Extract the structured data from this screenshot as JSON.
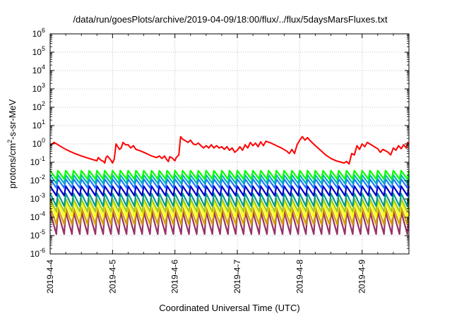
{
  "chart_data": {
    "type": "line",
    "title": "/data/run/goesPlots/archive/2019-04-09/18:00/flux/../flux/5daysMarsFluxes.txt",
    "xlabel": "Coordinated Universal Time (UTC)",
    "ylabel_parts": {
      "base": "protons/cm",
      "sup": "2",
      "rest": "-s-sr-MeV"
    },
    "y_scale": "log",
    "ylim": [
      1e-06,
      1000000.0
    ],
    "xlim": [
      "2019-04-04T00:00",
      "2019-04-09T18:00"
    ],
    "grid": true,
    "y_ticks": [
      {
        "value": 1e-06,
        "base": "10",
        "exp": "-6"
      },
      {
        "value": 1e-05,
        "base": "10",
        "exp": "-5"
      },
      {
        "value": 0.0001,
        "base": "10",
        "exp": "-4"
      },
      {
        "value": 0.001,
        "base": "10",
        "exp": "-3"
      },
      {
        "value": 0.01,
        "base": "10",
        "exp": "-2"
      },
      {
        "value": 0.1,
        "base": "10",
        "exp": "-1"
      },
      {
        "value": 1,
        "base": "10",
        "exp": "0"
      },
      {
        "value": 10,
        "base": "10",
        "exp": "1"
      },
      {
        "value": 100,
        "base": "10",
        "exp": "2"
      },
      {
        "value": 1000,
        "base": "10",
        "exp": "3"
      },
      {
        "value": 10000,
        "base": "10",
        "exp": "4"
      },
      {
        "value": 100000,
        "base": "10",
        "exp": "5"
      },
      {
        "value": 1000000,
        "base": "10",
        "exp": "6"
      }
    ],
    "x_ticks": [
      {
        "value": "2019-04-04",
        "label": "2019-4-4"
      },
      {
        "value": "2019-04-05",
        "label": "2019-4-5"
      },
      {
        "value": "2019-04-06",
        "label": "2019-4-6"
      },
      {
        "value": "2019-04-07",
        "label": "2019-4-7"
      },
      {
        "value": "2019-04-08",
        "label": "2019-4-8"
      },
      {
        "value": "2019-04-09",
        "label": "2019-4-9"
      }
    ],
    "series": [
      {
        "color": "#ff0000",
        "points": [
          [
            "2019-04-04T00:00",
            0.8
          ],
          [
            "2019-04-04T01:30",
            1.2
          ],
          [
            "2019-04-04T03:00",
            0.9
          ],
          [
            "2019-04-04T06:00",
            0.5
          ],
          [
            "2019-04-04T09:00",
            0.32
          ],
          [
            "2019-04-04T12:00",
            0.22
          ],
          [
            "2019-04-04T15:00",
            0.16
          ],
          [
            "2019-04-04T18:00",
            0.12
          ],
          [
            "2019-04-04T18:30",
            0.18
          ],
          [
            "2019-04-04T19:30",
            0.13
          ],
          [
            "2019-04-04T20:30",
            0.11
          ],
          [
            "2019-04-04T21:00",
            0.09
          ],
          [
            "2019-04-04T21:30",
            0.18
          ],
          [
            "2019-04-04T22:00",
            0.22
          ],
          [
            "2019-04-04T23:00",
            0.15
          ],
          [
            "2019-04-04T23:30",
            0.12
          ],
          [
            "2019-04-05T00:00",
            0.09
          ],
          [
            "2019-04-05T00:40",
            0.15
          ],
          [
            "2019-04-05T01:20",
            1.0
          ],
          [
            "2019-04-05T02:00",
            0.7
          ],
          [
            "2019-04-05T02:40",
            0.5
          ],
          [
            "2019-04-05T03:20",
            0.6
          ],
          [
            "2019-04-05T04:00",
            1.2
          ],
          [
            "2019-04-05T05:00",
            0.9
          ],
          [
            "2019-04-05T06:00",
            0.9
          ],
          [
            "2019-04-05T07:00",
            0.6
          ],
          [
            "2019-04-05T08:00",
            0.8
          ],
          [
            "2019-04-05T09:00",
            0.5
          ],
          [
            "2019-04-05T11:00",
            0.4
          ],
          [
            "2019-04-05T13:00",
            0.3
          ],
          [
            "2019-04-05T15:00",
            0.22
          ],
          [
            "2019-04-05T17:00",
            0.18
          ],
          [
            "2019-04-05T18:00",
            0.22
          ],
          [
            "2019-04-05T19:00",
            0.16
          ],
          [
            "2019-04-05T20:00",
            0.22
          ],
          [
            "2019-04-05T20:40",
            0.15
          ],
          [
            "2019-04-05T21:30",
            0.11
          ],
          [
            "2019-04-05T22:00",
            0.2
          ],
          [
            "2019-04-05T23:00",
            0.17
          ],
          [
            "2019-04-05T23:40",
            0.13
          ],
          [
            "2019-04-06T00:00",
            0.12
          ],
          [
            "2019-04-06T00:30",
            0.18
          ],
          [
            "2019-04-06T01:30",
            0.25
          ],
          [
            "2019-04-06T02:10",
            2.5
          ],
          [
            "2019-04-06T03:00",
            1.8
          ],
          [
            "2019-04-06T04:00",
            1.5
          ],
          [
            "2019-04-06T05:00",
            1.2
          ],
          [
            "2019-04-06T06:00",
            1.6
          ],
          [
            "2019-04-06T07:00",
            1.0
          ],
          [
            "2019-04-06T08:00",
            0.9
          ],
          [
            "2019-04-06T09:00",
            1.1
          ],
          [
            "2019-04-06T10:00",
            0.8
          ],
          [
            "2019-04-06T11:00",
            0.6
          ],
          [
            "2019-04-06T12:00",
            0.8
          ],
          [
            "2019-04-06T13:00",
            0.6
          ],
          [
            "2019-04-06T14:00",
            0.9
          ],
          [
            "2019-04-06T15:00",
            0.6
          ],
          [
            "2019-04-06T16:00",
            0.8
          ],
          [
            "2019-04-06T17:00",
            0.6
          ],
          [
            "2019-04-06T18:00",
            0.7
          ],
          [
            "2019-04-06T19:00",
            0.5
          ],
          [
            "2019-04-06T20:00",
            0.7
          ],
          [
            "2019-04-06T21:00",
            0.45
          ],
          [
            "2019-04-06T22:00",
            0.6
          ],
          [
            "2019-04-06T23:00",
            0.35
          ],
          [
            "2019-04-07T00:00",
            0.45
          ],
          [
            "2019-04-07T01:00",
            0.7
          ],
          [
            "2019-04-07T02:00",
            0.45
          ],
          [
            "2019-04-07T03:00",
            0.9
          ],
          [
            "2019-04-07T04:00",
            0.6
          ],
          [
            "2019-04-07T05:00",
            1.2
          ],
          [
            "2019-04-07T06:00",
            0.8
          ],
          [
            "2019-04-07T07:00",
            1.1
          ],
          [
            "2019-04-07T08:00",
            0.7
          ],
          [
            "2019-04-07T09:00",
            1.3
          ],
          [
            "2019-04-07T10:00",
            0.8
          ],
          [
            "2019-04-07T11:00",
            1.4
          ],
          [
            "2019-04-07T13:00",
            1.1
          ],
          [
            "2019-04-07T15:00",
            0.8
          ],
          [
            "2019-04-07T17:00",
            0.6
          ],
          [
            "2019-04-07T19:00",
            0.4
          ],
          [
            "2019-04-07T20:00",
            0.3
          ],
          [
            "2019-04-07T21:00",
            0.5
          ],
          [
            "2019-04-07T22:00",
            0.3
          ],
          [
            "2019-04-07T23:00",
            0.9
          ],
          [
            "2019-04-08T00:00",
            1.6
          ],
          [
            "2019-04-08T01:00",
            2.5
          ],
          [
            "2019-04-08T02:00",
            1.6
          ],
          [
            "2019-04-08T03:00",
            2.2
          ],
          [
            "2019-04-08T04:00",
            1.5
          ],
          [
            "2019-04-08T06:00",
            0.8
          ],
          [
            "2019-04-08T08:00",
            0.45
          ],
          [
            "2019-04-08T10:00",
            0.25
          ],
          [
            "2019-04-08T12:00",
            0.16
          ],
          [
            "2019-04-08T14:00",
            0.12
          ],
          [
            "2019-04-08T16:00",
            0.1
          ],
          [
            "2019-04-08T17:00",
            0.09
          ],
          [
            "2019-04-08T18:00",
            0.11
          ],
          [
            "2019-04-08T19:00",
            0.08
          ],
          [
            "2019-04-08T20:00",
            0.3
          ],
          [
            "2019-04-08T21:00",
            0.25
          ],
          [
            "2019-04-08T22:00",
            0.8
          ],
          [
            "2019-04-08T23:00",
            0.5
          ],
          [
            "2019-04-09T00:00",
            1.0
          ],
          [
            "2019-04-09T01:00",
            0.7
          ],
          [
            "2019-04-09T02:00",
            1.2
          ],
          [
            "2019-04-09T04:00",
            0.8
          ],
          [
            "2019-04-09T06:00",
            0.55
          ],
          [
            "2019-04-09T07:00",
            0.35
          ],
          [
            "2019-04-09T08:00",
            0.5
          ],
          [
            "2019-04-09T10:00",
            0.35
          ],
          [
            "2019-04-09T11:00",
            0.25
          ],
          [
            "2019-04-09T12:00",
            0.6
          ],
          [
            "2019-04-09T13:00",
            0.45
          ],
          [
            "2019-04-09T14:00",
            0.8
          ],
          [
            "2019-04-09T15:00",
            0.55
          ],
          [
            "2019-04-09T16:00",
            0.9
          ],
          [
            "2019-04-09T17:00",
            0.6
          ],
          [
            "2019-04-09T17:30",
            1.2
          ],
          [
            "2019-04-09T18:00",
            1.0
          ]
        ]
      },
      {
        "color": "#00ff00",
        "pattern": "sawtooth",
        "period_hours": 3,
        "peak": 0.035,
        "trough": 0.012
      },
      {
        "color": "#00b4b4",
        "pattern": "sawtooth",
        "period_hours": 3,
        "peak": 0.02,
        "trough": 0.007
      },
      {
        "color": "#1e78ff",
        "pattern": "sawtooth",
        "period_hours": 3,
        "peak": 0.012,
        "trough": 0.004
      },
      {
        "color": "#0000c8",
        "pattern": "sawtooth",
        "period_hours": 3,
        "peak": 0.005,
        "trough": 0.0015
      },
      {
        "color": "#009a8a",
        "pattern": "sawtooth",
        "period_hours": 3,
        "peak": 0.002,
        "trough": 0.0004
      },
      {
        "color": "#a0c828",
        "pattern": "sawtooth",
        "period_hours": 3,
        "peak": 0.001,
        "trough": 0.0002
      },
      {
        "color": "#ffff00",
        "pattern": "sawtooth",
        "period_hours": 3,
        "peak": 0.0007,
        "trough": 0.0001
      },
      {
        "color": "#d2a000",
        "pattern": "sawtooth",
        "period_hours": 3,
        "peak": 0.00035,
        "trough": 4e-05
      },
      {
        "color": "#963264",
        "pattern": "sawtooth",
        "period_hours": 3,
        "peak": 0.0002,
        "trough": 1.2e-05
      }
    ]
  }
}
